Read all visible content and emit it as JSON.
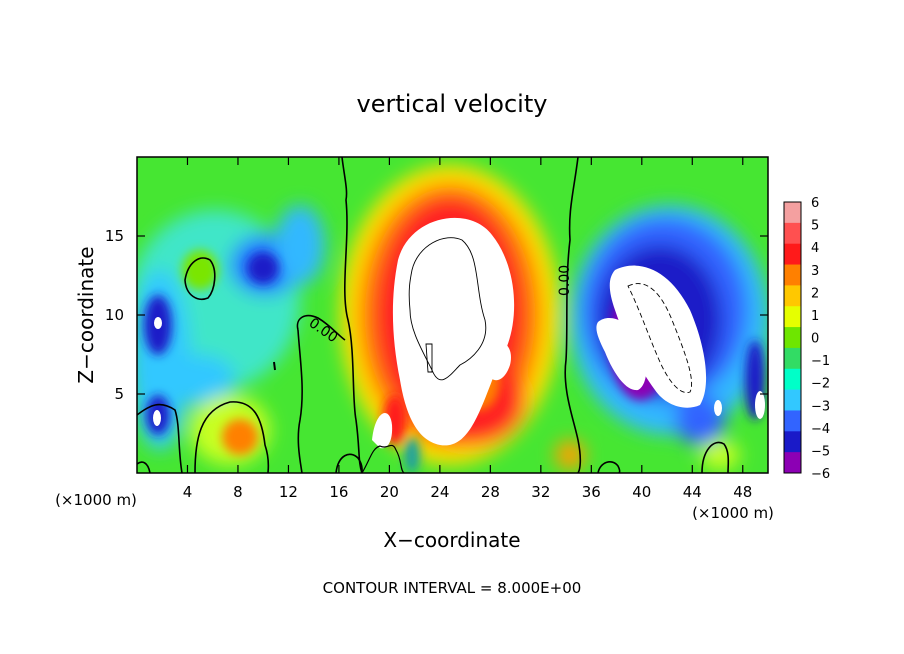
{
  "chart_data": {
    "type": "heatmap",
    "title": "vertical velocity",
    "xlabel": "X−coordinate",
    "ylabel": "Z−coordinate",
    "x_unit": "(×1000 m)",
    "x_unit_right": "(×1000 m)",
    "footer": "CONTOUR INTERVAL = 8.000E+00",
    "xlim": [
      0,
      50
    ],
    "ylim": [
      0,
      20
    ],
    "x_ticks": [
      4,
      8,
      12,
      16,
      20,
      24,
      28,
      32,
      36,
      40,
      44,
      48
    ],
    "y_ticks": [
      5,
      10,
      15
    ],
    "colorbar": {
      "levels": [
        6,
        5,
        4,
        3,
        2,
        1,
        0,
        -1,
        -2,
        -3,
        -4,
        -5,
        -6
      ],
      "labels": [
        "6",
        "5",
        "4",
        "3",
        "2",
        "1",
        "0",
        "−1",
        "−2",
        "−3",
        "−4",
        "−5",
        "−6"
      ],
      "colors": [
        "#f4a0a0",
        "#ff5050",
        "#ff1a1a",
        "#ff8000",
        "#ffc800",
        "#e6ff00",
        "#6ee600",
        "#32dc64",
        "#00ffc8",
        "#32c8ff",
        "#3264ff",
        "#1a1ac8",
        "#8c00b4"
      ]
    },
    "contour_labels": [
      "0.00",
      "0.00"
    ],
    "features": [
      {
        "kind": "updraft",
        "x_range": [
          18,
          34
        ],
        "z_range": [
          0.5,
          17.5
        ],
        "max_value": ">6"
      },
      {
        "kind": "downdraft",
        "x_range": [
          36,
          50
        ],
        "z_range": [
          1,
          16
        ],
        "min_value": "<-6"
      },
      {
        "kind": "weak-downdraft",
        "x_range": [
          0,
          16
        ],
        "z_range": [
          0,
          16
        ],
        "min_value": -5
      }
    ]
  }
}
